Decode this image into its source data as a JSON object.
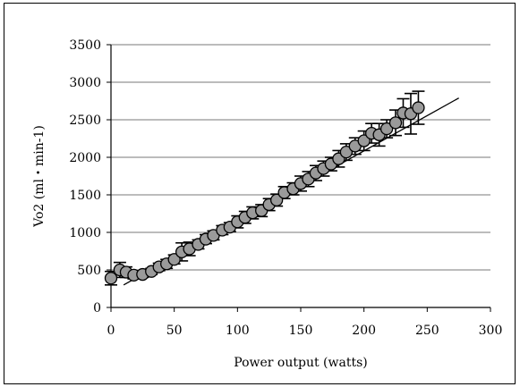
{
  "chart_data": {
    "type": "scatter",
    "title": "",
    "xlabel": "Power output (watts)",
    "ylabel": "Vo2 (ml・min-1)",
    "xlim": [
      0,
      300
    ],
    "ylim": [
      0,
      3500
    ],
    "x_ticks": [
      "0",
      "50",
      "100",
      "150",
      "200",
      "250",
      "300"
    ],
    "y_ticks": [
      "0",
      "500",
      "1000",
      "1500",
      "2000",
      "2500",
      "3000",
      "3500"
    ],
    "grid": "horizontal",
    "legend": "none",
    "marker_color": "#9a9a9a",
    "series": [
      {
        "points": [
          {
            "x": 0,
            "y": 390,
            "err": 90
          },
          {
            "x": 7,
            "y": 500,
            "err": 100
          },
          {
            "x": 12,
            "y": 470,
            "err": 70
          },
          {
            "x": 18,
            "y": 430,
            "err": 50
          },
          {
            "x": 25,
            "y": 440,
            "err": 40
          },
          {
            "x": 32,
            "y": 480,
            "err": 40
          },
          {
            "x": 38,
            "y": 540,
            "err": 50
          },
          {
            "x": 44,
            "y": 580,
            "err": 60
          },
          {
            "x": 50,
            "y": 640,
            "err": 60
          },
          {
            "x": 56,
            "y": 740,
            "err": 120
          },
          {
            "x": 62,
            "y": 780,
            "err": 90
          },
          {
            "x": 69,
            "y": 840,
            "err": 60
          },
          {
            "x": 75,
            "y": 910,
            "err": 60
          },
          {
            "x": 81,
            "y": 960,
            "err": 60
          },
          {
            "x": 88,
            "y": 1030,
            "err": 60
          },
          {
            "x": 94,
            "y": 1070,
            "err": 60
          },
          {
            "x": 100,
            "y": 1140,
            "err": 80
          },
          {
            "x": 106,
            "y": 1200,
            "err": 80
          },
          {
            "x": 112,
            "y": 1260,
            "err": 80
          },
          {
            "x": 119,
            "y": 1290,
            "err": 80
          },
          {
            "x": 125,
            "y": 1370,
            "err": 80
          },
          {
            "x": 131,
            "y": 1430,
            "err": 80
          },
          {
            "x": 137,
            "y": 1530,
            "err": 80
          },
          {
            "x": 144,
            "y": 1580,
            "err": 80
          },
          {
            "x": 150,
            "y": 1650,
            "err": 100
          },
          {
            "x": 156,
            "y": 1710,
            "err": 100
          },
          {
            "x": 162,
            "y": 1790,
            "err": 100
          },
          {
            "x": 168,
            "y": 1850,
            "err": 100
          },
          {
            "x": 174,
            "y": 1910,
            "err": 90
          },
          {
            "x": 180,
            "y": 1980,
            "err": 110
          },
          {
            "x": 186,
            "y": 2070,
            "err": 110
          },
          {
            "x": 193,
            "y": 2150,
            "err": 110
          },
          {
            "x": 200,
            "y": 2220,
            "err": 130
          },
          {
            "x": 206,
            "y": 2320,
            "err": 130
          },
          {
            "x": 212,
            "y": 2300,
            "err": 150
          },
          {
            "x": 218,
            "y": 2380,
            "err": 120
          },
          {
            "x": 225,
            "y": 2460,
            "err": 170
          },
          {
            "x": 231,
            "y": 2590,
            "err": 190
          },
          {
            "x": 237,
            "y": 2580,
            "err": 270
          },
          {
            "x": 243,
            "y": 2660,
            "err": 220
          }
        ]
      }
    ],
    "trendline": {
      "x": [
        10,
        275
      ],
      "y": [
        300,
        2790
      ]
    }
  }
}
